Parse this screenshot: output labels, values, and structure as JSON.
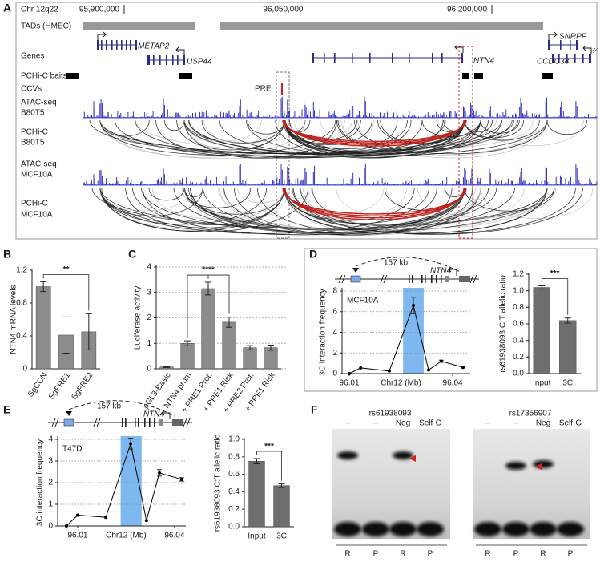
{
  "panel_labels": [
    "A",
    "B",
    "C",
    "D",
    "E",
    "F"
  ],
  "genome": {
    "chromosome": "Chr 12q22",
    "xlim": [
      95811800,
      96285600
    ],
    "ticks": [
      {
        "value": 95900000,
        "label": "95,900,000"
      },
      {
        "value": 96050000,
        "label": "96,050,000"
      },
      {
        "value": 96200000,
        "label": "96,200,000"
      }
    ],
    "tracks": [
      [
        "TADs (HMEC)"
      ],
      [
        "Genes"
      ],
      [
        "PCHi-C baits"
      ],
      [
        "CCVs"
      ],
      [
        "ATAC-seq",
        "B80T5"
      ],
      [
        "PCHi-C",
        "B80T5"
      ],
      [
        "ATAC-seq",
        "MCF10A"
      ],
      [
        "PCHi-C",
        "MCF10A"
      ]
    ],
    "genes": [
      "METAP2",
      "USP44",
      "NTN4",
      "SNRPF",
      "CCDC38"
    ],
    "ccv_label": "PRE"
  },
  "chart_data": [
    {
      "type": "bar",
      "ylabel": "NTN4 mRNA levels",
      "categories": [
        "SgCON",
        "SgPRE1",
        "SgPRE2"
      ],
      "values": [
        1.0,
        0.41,
        0.45
      ],
      "errors": [
        0.06,
        0.22,
        0.22
      ],
      "ylim": [
        0,
        1.2
      ],
      "yticks": [
        0,
        0.4,
        0.8,
        1.2
      ],
      "color": "#8c8c8c",
      "grid": false,
      "significance": "**"
    },
    {
      "type": "bar",
      "ylabel": "Luciferase activity",
      "categories": [
        "pGL3-Basic",
        "NTN4 prom",
        "+ PRE1 Prot.",
        "+ PRE1 Risk",
        "+ PRE2 Prot.",
        "+ PRE1 Risk"
      ],
      "values": [
        0.07,
        1.0,
        3.15,
        1.83,
        0.83,
        0.83
      ],
      "errors": [
        0.02,
        0.1,
        0.25,
        0.2,
        0.08,
        0.1
      ],
      "ylim": [
        0,
        4
      ],
      "yticks": [
        0,
        1,
        2,
        3,
        4
      ],
      "color": "#8c8c8c",
      "grid": true,
      "significance": "****"
    },
    {
      "type": "line",
      "construct_distance": "157 kb",
      "construct_gene": "NTN4",
      "cell_line": "MCF10A",
      "ylabel": "3C interaction frequency",
      "xlabel": "Chr12 (Mb)",
      "x": [
        96.01,
        96.0133,
        96.0216,
        96.0286,
        96.033,
        96.0367,
        96.043
      ],
      "values": [
        0,
        0.55,
        0.25,
        6.6,
        0.35,
        1.2,
        0.6
      ],
      "errors": [
        0,
        0,
        0,
        0.8,
        0,
        0.1,
        0.05
      ],
      "highlight": [
        96.0256,
        96.0316
      ],
      "xlim": [
        96.0079,
        96.0451
      ],
      "xticks": [
        96.01,
        96.04
      ],
      "ylim": [
        0,
        8
      ],
      "yticks": [
        0,
        2,
        4,
        6,
        8
      ],
      "grid": true,
      "color": "#000000",
      "highlight_color": "#7fb8f0"
    },
    {
      "type": "bar",
      "ylabel": "rs61938093 C:T allelic ratio",
      "categories": [
        "Input",
        "3C"
      ],
      "values": [
        1.04,
        0.64
      ],
      "errors": [
        0.02,
        0.03
      ],
      "ylim": [
        0,
        1.2
      ],
      "yticks": [
        {
          "value": 0,
          "label": "0.0"
        },
        0.2,
        0.4,
        0.6,
        0.8,
        {
          "value": 1,
          "label": "1.0"
        },
        1.2
      ],
      "color": "#6e6e6e",
      "grid": false,
      "significance": "***"
    },
    {
      "type": "line",
      "construct_distance": "157 kb",
      "construct_gene": "NTN4",
      "cell_line": "T47D",
      "ylabel": "3C interaction frequency",
      "xlabel": "Chr12 (Mb)",
      "x": [
        96.0065,
        96.01,
        96.0187,
        96.0264,
        96.0313,
        96.0353,
        96.0422
      ],
      "values": [
        0,
        0.5,
        0.4,
        3.8,
        0.25,
        2.45,
        2.15
      ],
      "errors": [
        0,
        0,
        0,
        0.25,
        0,
        0.15,
        0.08
      ],
      "highlight": [
        96.0233,
        96.0298
      ],
      "xlim": [
        96.0038,
        96.0435
      ],
      "xticks": [
        96.01,
        96.04
      ],
      "ylim": [
        0,
        4
      ],
      "yticks": [
        0,
        1,
        2,
        3,
        4
      ],
      "grid": true,
      "color": "#000000",
      "highlight_color": "#7fb8f0"
    },
    {
      "type": "bar",
      "ylabel": "rs61938093 C:T allelic ratio",
      "categories": [
        "Input",
        "3C"
      ],
      "values": [
        0.75,
        0.47
      ],
      "errors": [
        0.03,
        0.02
      ],
      "ylim": [
        0,
        1
      ],
      "yticks": [
        {
          "value": 0,
          "label": "0.0"
        },
        0.2,
        0.4,
        0.6,
        0.8,
        {
          "value": 1,
          "label": "1.0"
        }
      ],
      "color": "#6e6e6e",
      "grid": false,
      "significance": "***"
    }
  ],
  "gel": [
    {
      "snp": "rs61938093",
      "lanes": [
        "–",
        "–",
        "Neg",
        "Self-C"
      ],
      "alleles": [
        "R",
        "P",
        "R",
        "P"
      ]
    },
    {
      "snp": "rs17356907",
      "lanes": [
        "–",
        "–",
        "Neg",
        "Self-G"
      ],
      "alleles": [
        "R",
        "P",
        "R",
        "P"
      ]
    }
  ]
}
